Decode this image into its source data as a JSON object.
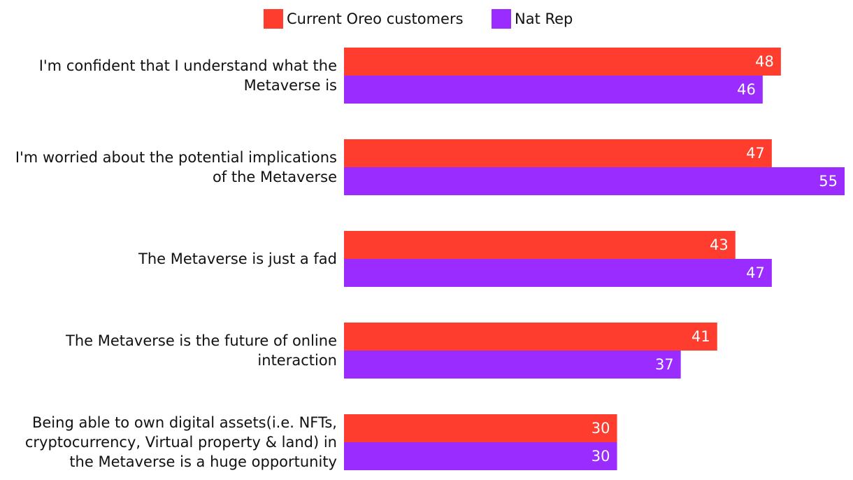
{
  "chart_data": {
    "type": "hbar",
    "categories": [
      "I'm confident that I understand what the Metaverse is",
      "I'm worried about the potential implications of the Metaverse",
      "The Metaverse is just a fad",
      "The Metaverse is the future of online interaction",
      "Being able to own digital assets(i.e. NFTs, cryptocurrency, Virtual property & land) in the Metaverse is a huge opportunity"
    ],
    "series": [
      {
        "name": "Current Oreo customers",
        "color": "#ff3d2e",
        "values": [
          48,
          47,
          43,
          41,
          30
        ]
      },
      {
        "name": "Nat Rep",
        "color": "#9b2cff",
        "values": [
          46,
          55,
          47,
          37,
          30
        ]
      }
    ],
    "xlim": [
      0,
      55
    ],
    "legend": "top"
  }
}
